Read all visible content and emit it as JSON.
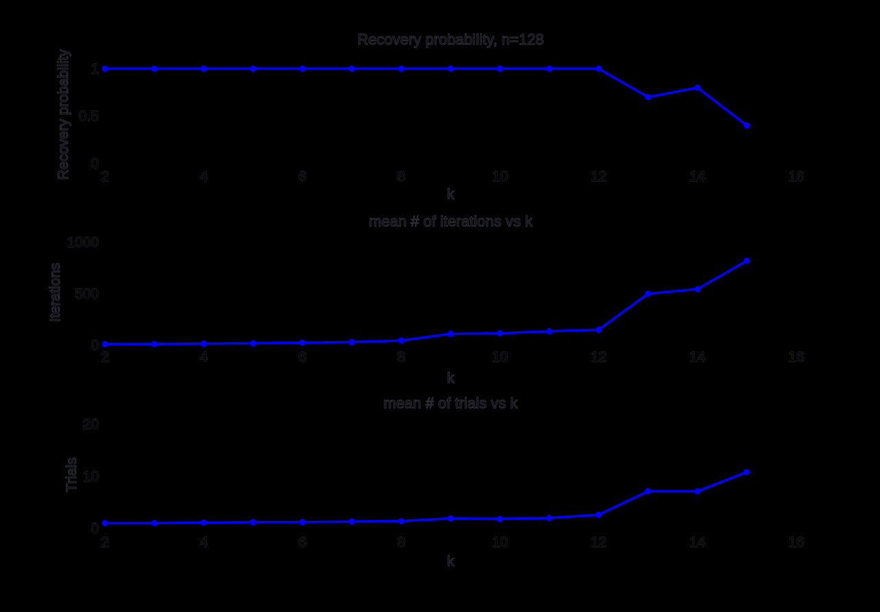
{
  "figure": {
    "background_color": "#000000",
    "line_color": "#0000ff",
    "text_color": "#000000",
    "text_outline_color": "#30303c"
  },
  "chart_data": [
    {
      "type": "line",
      "title": "Recovery probability, n=128",
      "xlabel": "k",
      "ylabel": "Recovery probability",
      "x": [
        2,
        3,
        4,
        5,
        6,
        7,
        8,
        9,
        10,
        11,
        12,
        13,
        14,
        15
      ],
      "values": [
        1,
        1,
        1,
        1,
        1,
        1,
        1,
        1,
        1,
        1,
        1,
        0.7,
        0.8,
        0.4
      ],
      "xlim": [
        2,
        16
      ],
      "ylim": [
        0,
        1
      ],
      "xticks": [
        2,
        4,
        6,
        8,
        10,
        12,
        14,
        16
      ],
      "yticks": [
        0,
        0.5,
        1
      ],
      "grid": false,
      "legend": null,
      "marker": "filled-circle",
      "line_color": "#0000ff"
    },
    {
      "type": "line",
      "title": "mean # of iterations vs k",
      "xlabel": "k",
      "ylabel": "Iterations",
      "x": [
        2,
        3,
        4,
        5,
        6,
        7,
        8,
        9,
        10,
        11,
        12,
        13,
        14,
        15
      ],
      "values": [
        10,
        12,
        15,
        18,
        25,
        30,
        45,
        110,
        115,
        135,
        150,
        500,
        545,
        820
      ],
      "xlim": [
        2,
        16
      ],
      "ylim": [
        0,
        1000
      ],
      "xticks": [
        2,
        4,
        6,
        8,
        10,
        12,
        14,
        16
      ],
      "yticks": [
        0,
        500,
        1000
      ],
      "grid": false,
      "legend": null,
      "marker": "filled-circle",
      "line_color": "#0000ff"
    },
    {
      "type": "line",
      "title": "mean # of trials vs k",
      "xlabel": "k",
      "ylabel": "Trials",
      "x": [
        2,
        3,
        4,
        5,
        6,
        7,
        8,
        9,
        10,
        11,
        12,
        13,
        14,
        15
      ],
      "values": [
        1,
        1,
        1.1,
        1.2,
        1.2,
        1.3,
        1.4,
        1.9,
        1.8,
        2,
        2.6,
        7.1,
        7.1,
        10.8
      ],
      "xlim": [
        2,
        16
      ],
      "ylim": [
        0,
        20
      ],
      "xticks": [
        2,
        4,
        6,
        8,
        10,
        12,
        14,
        16
      ],
      "yticks": [
        0,
        10,
        20
      ],
      "grid": false,
      "legend": null,
      "marker": "filled-circle",
      "line_color": "#0000ff"
    }
  ]
}
